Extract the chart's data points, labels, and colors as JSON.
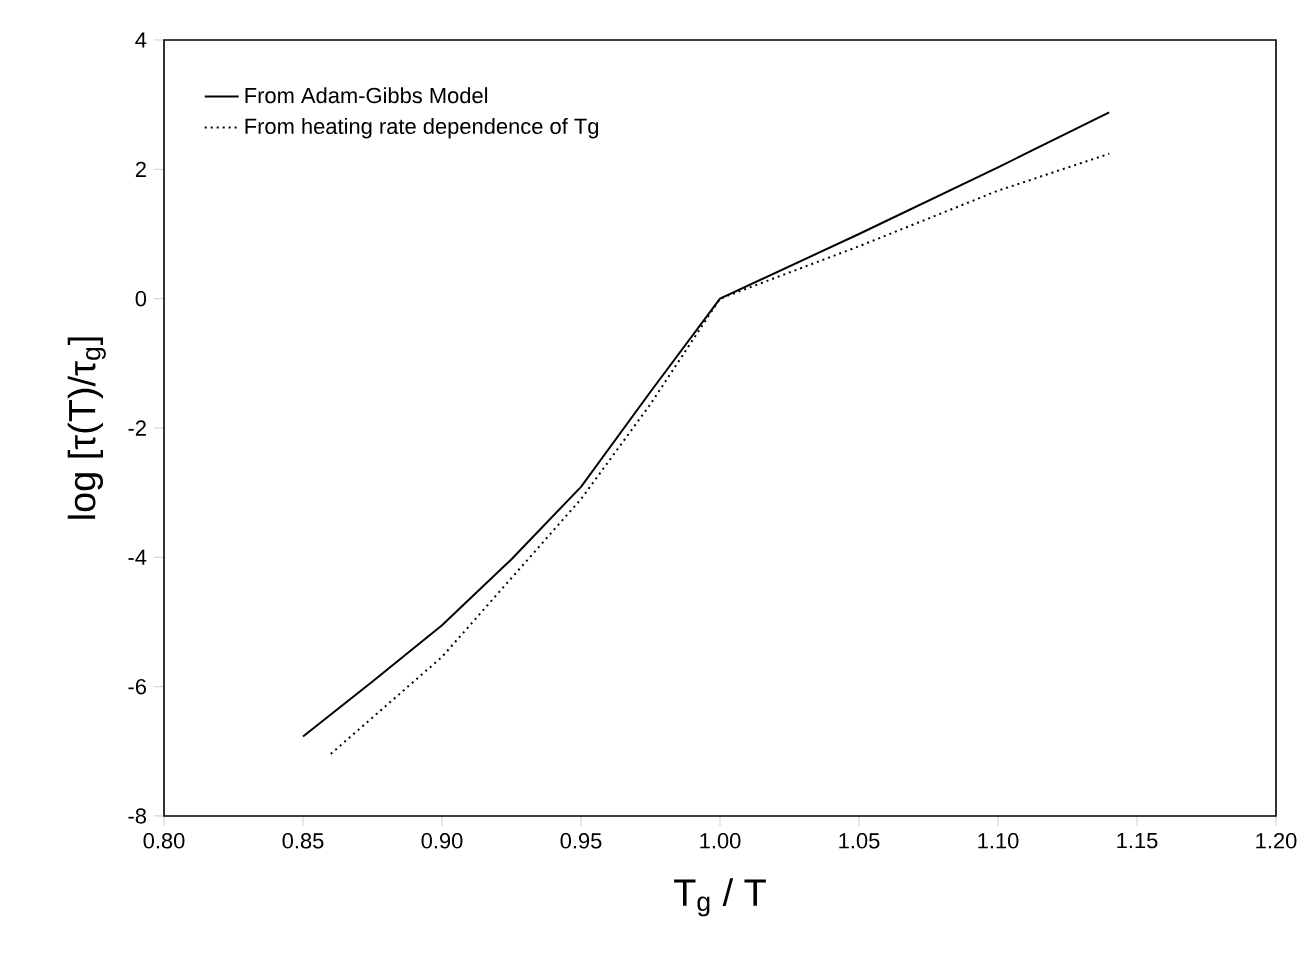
{
  "chart_data": {
    "type": "line",
    "xlabel": "T$_{g}$ / T",
    "ylabel": "log [τ(T)/τ$_{g}$]",
    "xlim": [
      0.8,
      1.2
    ],
    "ylim": [
      -8,
      4
    ],
    "xticks": [
      {
        "value": 0.8,
        "label": "0.80"
      },
      {
        "value": 0.85,
        "label": "0.85"
      },
      {
        "value": 0.9,
        "label": "0.90"
      },
      {
        "value": 0.95,
        "label": "0.95"
      },
      {
        "value": 1.0,
        "label": "1.00"
      },
      {
        "value": 1.05,
        "label": "1.05"
      },
      {
        "value": 1.1,
        "label": "1.10"
      },
      {
        "value": 1.15,
        "label": "1.15"
      },
      {
        "value": 1.2,
        "label": "1.20"
      }
    ],
    "yticks": [
      -8,
      -6,
      -4,
      -2,
      0,
      2,
      4
    ],
    "legend": "top left",
    "grid": false,
    "series": [
      {
        "name": "From Adam-Gibbs Model",
        "color": "#000000",
        "line_style": "solid",
        "x": [
          0.85,
          0.875,
          0.9,
          0.925,
          0.95,
          0.975,
          1.0,
          1.05,
          1.1,
          1.14
        ],
        "values": [
          -6.77,
          -5.92,
          -5.05,
          -4.03,
          -2.91,
          -1.44,
          0,
          1.0,
          2.03,
          2.88
        ]
      },
      {
        "name": "From heating rate dependence of Tg",
        "color": "#000000",
        "line_style": "dotted",
        "x": [
          0.86,
          0.9,
          0.95,
          0.975,
          1.0,
          1.05,
          1.1,
          1.14
        ],
        "values": [
          -7.04,
          -5.54,
          -3.1,
          -1.63,
          0,
          0.81,
          1.67,
          2.24
        ]
      }
    ]
  }
}
